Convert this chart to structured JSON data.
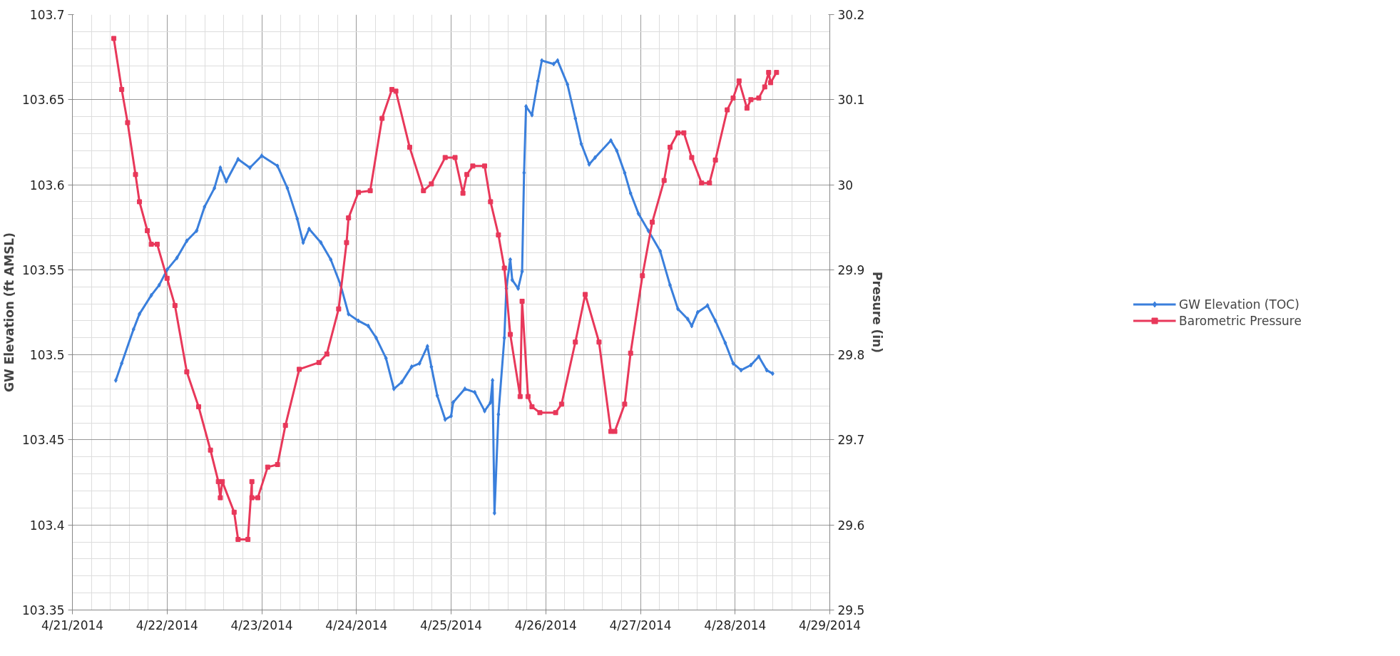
{
  "chart_data": {
    "type": "line",
    "ylabel": "GW Elevation (ft AMSL)",
    "y2label": "Presure (in)",
    "xlim": [
      "2014-04-21",
      "2014-04-29"
    ],
    "xticks": [
      {
        "value": "2014-04-21",
        "label": "4/21/2014"
      },
      {
        "value": "2014-04-22",
        "label": "4/22/2014"
      },
      {
        "value": "2014-04-23",
        "label": "4/23/2014"
      },
      {
        "value": "2014-04-24",
        "label": "4/24/2014"
      },
      {
        "value": "2014-04-25",
        "label": "4/25/2014"
      },
      {
        "value": "2014-04-26",
        "label": "4/26/2014"
      },
      {
        "value": "2014-04-27",
        "label": "4/27/2014"
      },
      {
        "value": "2014-04-28",
        "label": "4/28/2014"
      },
      {
        "value": "2014-04-29",
        "label": "4/29/2014"
      }
    ],
    "ylim": [
      103.35,
      103.7
    ],
    "yticks": [
      103.35,
      103.4,
      103.45,
      103.5,
      103.55,
      103.6,
      103.65,
      103.7
    ],
    "y2lim": [
      29.5,
      30.2
    ],
    "y2ticks": [
      29.5,
      29.6,
      29.7,
      29.8,
      29.9,
      30,
      30.1,
      30.2
    ],
    "grid": true,
    "legend": "right",
    "line_style": "solid",
    "series": [
      {
        "name": "GW Elevation (TOC)",
        "color": "#3a7fdc",
        "marker": "diamond",
        "x": [
          "2014-04-21T11:00",
          "2014-04-21T12:30",
          "2014-04-21T15:30",
          "2014-04-21T17:00",
          "2014-04-21T20:00",
          "2014-04-21T22:00",
          "2014-04-22T00:00",
          "2014-04-22T02:30",
          "2014-04-22T05:00",
          "2014-04-22T07:30",
          "2014-04-22T09:30",
          "2014-04-22T12:00",
          "2014-04-22T13:30",
          "2014-04-22T15:00",
          "2014-04-22T18:00",
          "2014-04-22T21:00",
          "2014-04-23T00:00",
          "2014-04-23T04:00",
          "2014-04-23T06:30",
          "2014-04-23T09:00",
          "2014-04-23T10:30",
          "2014-04-23T12:00",
          "2014-04-23T15:00",
          "2014-04-23T17:30",
          "2014-04-23T20:00",
          "2014-04-23T22:00",
          "2014-04-24T00:30",
          "2014-04-24T03:00",
          "2014-04-24T05:00",
          "2014-04-24T07:30",
          "2014-04-24T09:30",
          "2014-04-24T11:30",
          "2014-04-24T14:00",
          "2014-04-24T16:00",
          "2014-04-24T18:00",
          "2014-04-24T19:00",
          "2014-04-24T20:30",
          "2014-04-24T22:30",
          "2014-04-25T00:00",
          "2014-04-25T00:30",
          "2014-04-25T03:30",
          "2014-04-25T06:00",
          "2014-04-25T08:30",
          "2014-04-25T10:00",
          "2014-04-25T10:30",
          "2014-04-25T11:00",
          "2014-04-25T12:00",
          "2014-04-25T13:30",
          "2014-04-25T14:00",
          "2014-04-25T15:00",
          "2014-04-25T15:30",
          "2014-04-25T17:00",
          "2014-04-25T18:00",
          "2014-04-25T18:30",
          "2014-04-25T19:00",
          "2014-04-25T20:30",
          "2014-04-25T22:00",
          "2014-04-25T23:00",
          "2014-04-26T02:00",
          "2014-04-26T03:00",
          "2014-04-26T05:30",
          "2014-04-26T07:30",
          "2014-04-26T09:00",
          "2014-04-26T11:00",
          "2014-04-26T12:30",
          "2014-04-26T16:30",
          "2014-04-26T18:00",
          "2014-04-26T20:00",
          "2014-04-26T21:30",
          "2014-04-26T23:30",
          "2014-04-27T02:00",
          "2014-04-27T05:00",
          "2014-04-27T07:30",
          "2014-04-27T09:30",
          "2014-04-27T12:00",
          "2014-04-27T13:00",
          "2014-04-27T14:30",
          "2014-04-27T17:00",
          "2014-04-27T19:00",
          "2014-04-27T21:30",
          "2014-04-27T23:30",
          "2014-04-28T01:30",
          "2014-04-28T04:00",
          "2014-04-28T06:00",
          "2014-04-28T08:00",
          "2014-04-28T09:30"
        ],
        "values": [
          103.485,
          103.495,
          103.515,
          103.524,
          103.535,
          103.541,
          103.55,
          103.557,
          103.567,
          103.573,
          103.587,
          103.598,
          103.61,
          103.602,
          103.615,
          103.61,
          103.617,
          103.611,
          103.598,
          103.58,
          103.566,
          103.574,
          103.566,
          103.556,
          103.541,
          103.524,
          103.52,
          103.517,
          103.51,
          103.498,
          103.48,
          103.484,
          103.493,
          103.495,
          103.505,
          103.493,
          103.476,
          103.462,
          103.464,
          103.472,
          103.48,
          103.478,
          103.467,
          103.472,
          103.485,
          103.407,
          103.465,
          103.51,
          103.539,
          103.556,
          103.544,
          103.539,
          103.549,
          103.607,
          103.646,
          103.641,
          103.661,
          103.673,
          103.671,
          103.673,
          103.659,
          103.639,
          103.624,
          103.612,
          103.616,
          103.626,
          103.62,
          103.607,
          103.595,
          103.583,
          103.573,
          103.561,
          103.541,
          103.527,
          103.521,
          103.517,
          103.525,
          103.529,
          103.52,
          103.507,
          103.495,
          103.491,
          103.494,
          103.499,
          103.491,
          103.489
        ]
      },
      {
        "name": "Barometric Pressure",
        "color": "#e8385a",
        "marker": "square",
        "axis": "y2",
        "x": [
          "2014-04-21T10:30",
          "2014-04-21T12:30",
          "2014-04-21T14:00",
          "2014-04-21T16:00",
          "2014-04-21T17:00",
          "2014-04-21T19:00",
          "2014-04-21T20:00",
          "2014-04-21T21:30",
          "2014-04-22T00:00",
          "2014-04-22T02:00",
          "2014-04-22T05:00",
          "2014-04-22T08:00",
          "2014-04-22T11:00",
          "2014-04-22T13:00",
          "2014-04-22T13:30",
          "2014-04-22T14:00",
          "2014-04-22T17:00",
          "2014-04-22T18:00",
          "2014-04-22T20:30",
          "2014-04-22T21:30",
          "2014-04-22T21:30",
          "2014-04-22T23:00",
          "2014-04-23T01:30",
          "2014-04-23T04:00",
          "2014-04-23T06:00",
          "2014-04-23T09:30",
          "2014-04-23T14:30",
          "2014-04-23T16:30",
          "2014-04-23T19:30",
          "2014-04-23T21:30",
          "2014-04-23T22:00",
          "2014-04-24T00:30",
          "2014-04-24T03:30",
          "2014-04-24T06:30",
          "2014-04-24T09:00",
          "2014-04-24T10:00",
          "2014-04-24T13:30",
          "2014-04-24T17:00",
          "2014-04-24T19:00",
          "2014-04-24T22:30",
          "2014-04-25T01:00",
          "2014-04-25T03:00",
          "2014-04-25T04:00",
          "2014-04-25T05:30",
          "2014-04-25T08:30",
          "2014-04-25T10:00",
          "2014-04-25T12:00",
          "2014-04-25T13:30",
          "2014-04-25T15:00",
          "2014-04-25T17:30",
          "2014-04-25T18:00",
          "2014-04-25T19:30",
          "2014-04-25T20:30",
          "2014-04-25T22:30",
          "2014-04-26T02:30",
          "2014-04-26T04:00",
          "2014-04-26T07:30",
          "2014-04-26T10:00",
          "2014-04-26T13:30",
          "2014-04-26T16:30",
          "2014-04-26T17:30",
          "2014-04-26T20:00",
          "2014-04-26T21:30",
          "2014-04-27T00:30",
          "2014-04-27T03:00",
          "2014-04-27T06:00",
          "2014-04-27T07:30",
          "2014-04-27T09:30",
          "2014-04-27T11:00",
          "2014-04-27T13:00",
          "2014-04-27T15:30",
          "2014-04-27T17:30",
          "2014-04-27T19:00",
          "2014-04-27T22:00",
          "2014-04-27T23:30",
          "2014-04-28T01:00",
          "2014-04-28T03:00",
          "2014-04-28T04:00",
          "2014-04-28T06:00",
          "2014-04-28T07:30",
          "2014-04-28T08:30",
          "2014-04-28T09:00",
          "2014-04-28T10:30"
        ],
        "values": [
          30.172,
          30.112,
          30.073,
          30.012,
          29.98,
          29.946,
          29.93,
          29.93,
          29.89,
          29.858,
          29.78,
          29.739,
          29.688,
          29.651,
          29.632,
          29.651,
          29.615,
          29.583,
          29.583,
          29.651,
          29.632,
          29.632,
          29.668,
          29.671,
          29.717,
          29.783,
          29.791,
          29.801,
          29.854,
          29.932,
          29.961,
          29.991,
          29.993,
          30.078,
          30.112,
          30.11,
          30.044,
          29.993,
          30.001,
          30.032,
          30.032,
          29.99,
          30.012,
          30.022,
          30.022,
          29.98,
          29.941,
          29.902,
          29.824,
          29.751,
          29.863,
          29.751,
          29.739,
          29.732,
          29.732,
          29.742,
          29.815,
          29.871,
          29.815,
          29.71,
          29.71,
          29.742,
          29.802,
          29.893,
          29.956,
          30.005,
          30.044,
          30.061,
          30.061,
          30.032,
          30.002,
          30.002,
          30.029,
          30.088,
          30.102,
          30.122,
          30.09,
          30.1,
          30.102,
          30.115,
          30.132,
          30.12,
          30.132
        ]
      }
    ]
  }
}
